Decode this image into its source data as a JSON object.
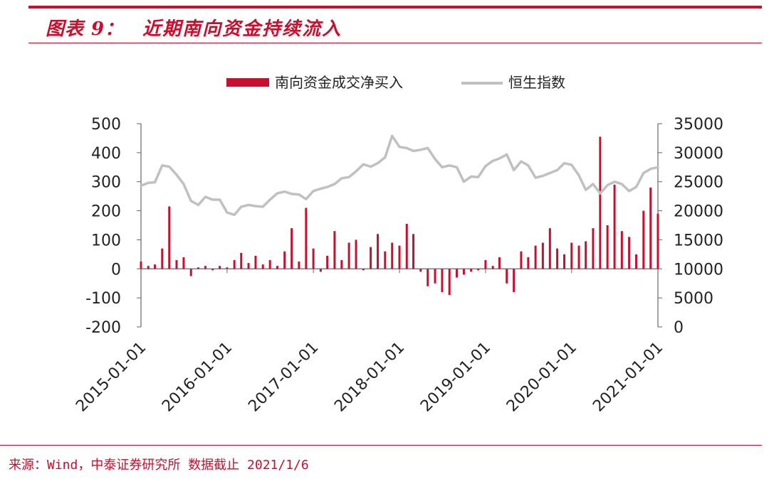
{
  "header": {
    "figure_label": "图表 9：",
    "title": "近期南向资金持续流入"
  },
  "footer": {
    "source": "来源：Wind，中泰证券研究所 数据截止 2021/1/6"
  },
  "colors": {
    "bar": "#c8102e",
    "line": "#c0c0c0",
    "accent": "#c8102e"
  },
  "chart_data": {
    "type": "bar",
    "legend_position": "top-center",
    "grid": false,
    "x_ticks": [
      "2015-01-01",
      "2016-01-01",
      "2017-01-01",
      "2018-01-01",
      "2019-01-01",
      "2020-01-01",
      "2021-01-01"
    ],
    "y_left": {
      "ylim": [
        -200,
        500
      ],
      "ticks": [
        "500",
        "400",
        "300",
        "200",
        "100",
        "0",
        "-100",
        "-200"
      ]
    },
    "y_right": {
      "ylim": [
        0,
        35000
      ],
      "ticks": [
        "35000",
        "30000",
        "25000",
        "20000",
        "15000",
        "10000",
        "5000",
        "0"
      ]
    },
    "series": [
      {
        "name": "南向资金成交净买入",
        "type": "bar",
        "axis": "left",
        "x": [
          "2015-01-01",
          "2015-02-01",
          "2015-03-01",
          "2015-04-01",
          "2015-05-01",
          "2015-06-01",
          "2015-07-01",
          "2015-08-01",
          "2015-09-01",
          "2015-10-01",
          "2015-11-01",
          "2015-12-01",
          "2016-01-01",
          "2016-02-01",
          "2016-03-01",
          "2016-04-01",
          "2016-05-01",
          "2016-06-01",
          "2016-07-01",
          "2016-08-01",
          "2016-09-01",
          "2016-10-01",
          "2016-11-01",
          "2016-12-01",
          "2017-01-01",
          "2017-02-01",
          "2017-03-01",
          "2017-04-01",
          "2017-05-01",
          "2017-06-01",
          "2017-07-01",
          "2017-08-01",
          "2017-09-01",
          "2017-10-01",
          "2017-11-01",
          "2017-12-01",
          "2018-01-01",
          "2018-02-01",
          "2018-03-01",
          "2018-04-01",
          "2018-05-01",
          "2018-06-01",
          "2018-07-01",
          "2018-08-01",
          "2018-09-01",
          "2018-10-01",
          "2018-11-01",
          "2018-12-01",
          "2019-01-01",
          "2019-02-01",
          "2019-03-01",
          "2019-04-01",
          "2019-05-01",
          "2019-06-01",
          "2019-07-01",
          "2019-08-01",
          "2019-09-01",
          "2019-10-01",
          "2019-11-01",
          "2019-12-01",
          "2020-01-01",
          "2020-02-01",
          "2020-03-01",
          "2020-04-01",
          "2020-05-01",
          "2020-06-01",
          "2020-07-01",
          "2020-08-01",
          "2020-09-01",
          "2020-10-01",
          "2020-11-01",
          "2020-12-01",
          "2021-01-01"
        ],
        "values": [
          25,
          10,
          15,
          70,
          215,
          30,
          40,
          -25,
          5,
          10,
          -5,
          10,
          5,
          30,
          55,
          20,
          45,
          15,
          30,
          10,
          60,
          140,
          25,
          210,
          70,
          -10,
          45,
          130,
          30,
          90,
          100,
          -5,
          75,
          120,
          60,
          90,
          80,
          155,
          120,
          -10,
          -60,
          -50,
          -80,
          -90,
          -30,
          -20,
          -10,
          -5,
          30,
          10,
          40,
          -50,
          -80,
          60,
          40,
          80,
          90,
          140,
          70,
          50,
          90,
          80,
          95,
          140,
          455,
          150,
          290,
          130,
          110,
          50,
          200,
          280,
          190
        ],
        "notes": ""
      },
      {
        "name": "恒生指数",
        "type": "line",
        "axis": "right",
        "x": [
          "2015-01-01",
          "2015-02-01",
          "2015-03-01",
          "2015-04-01",
          "2015-05-01",
          "2015-06-01",
          "2015-07-01",
          "2015-08-01",
          "2015-09-01",
          "2015-10-01",
          "2015-11-01",
          "2015-12-01",
          "2016-01-01",
          "2016-02-01",
          "2016-03-01",
          "2016-04-01",
          "2016-05-01",
          "2016-06-01",
          "2016-07-01",
          "2016-08-01",
          "2016-09-01",
          "2016-10-01",
          "2016-11-01",
          "2016-12-01",
          "2017-01-01",
          "2017-02-01",
          "2017-03-01",
          "2017-04-01",
          "2017-05-01",
          "2017-06-01",
          "2017-07-01",
          "2017-08-01",
          "2017-09-01",
          "2017-10-01",
          "2017-11-01",
          "2017-12-01",
          "2018-01-01",
          "2018-02-01",
          "2018-03-01",
          "2018-04-01",
          "2018-05-01",
          "2018-06-01",
          "2018-07-01",
          "2018-08-01",
          "2018-09-01",
          "2018-10-01",
          "2018-11-01",
          "2018-12-01",
          "2019-01-01",
          "2019-02-01",
          "2019-03-01",
          "2019-04-01",
          "2019-05-01",
          "2019-06-01",
          "2019-07-01",
          "2019-08-01",
          "2019-09-01",
          "2019-10-01",
          "2019-11-01",
          "2019-12-01",
          "2020-01-01",
          "2020-02-01",
          "2020-03-01",
          "2020-04-01",
          "2020-05-01",
          "2020-06-01",
          "2020-07-01",
          "2020-08-01",
          "2020-09-01",
          "2020-10-01",
          "2020-11-01",
          "2020-12-01",
          "2021-01-01"
        ],
        "values": [
          24300,
          24800,
          24900,
          27800,
          27600,
          26200,
          24600,
          21700,
          21000,
          22400,
          21900,
          21900,
          19700,
          19300,
          20700,
          21000,
          20800,
          20700,
          21900,
          23000,
          23300,
          22900,
          22800,
          22000,
          23400,
          23800,
          24100,
          24600,
          25600,
          25800,
          26800,
          28000,
          27600,
          28200,
          29200,
          32900,
          31000,
          30800,
          30300,
          30500,
          30800,
          28900,
          27500,
          27800,
          27500,
          25000,
          25900,
          25800,
          27700,
          28600,
          29000,
          29700,
          27000,
          28500,
          27800,
          25700,
          26000,
          26500,
          27000,
          28200,
          27900,
          26100,
          23600,
          24600,
          23000,
          24400,
          25000,
          24600,
          23400,
          24100,
          26500,
          27200,
          27500
        ]
      }
    ]
  }
}
